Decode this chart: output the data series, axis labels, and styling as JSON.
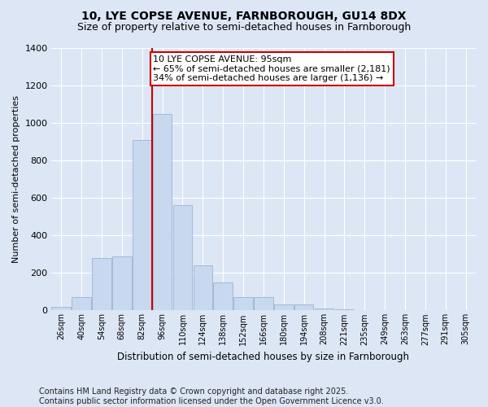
{
  "title": "10, LYE COPSE AVENUE, FARNBOROUGH, GU14 8DX",
  "subtitle": "Size of property relative to semi-detached houses in Farnborough",
  "xlabel": "Distribution of semi-detached houses by size in Farnborough",
  "ylabel": "Number of semi-detached properties",
  "categories": [
    "26sqm",
    "40sqm",
    "54sqm",
    "68sqm",
    "82sqm",
    "96sqm",
    "110sqm",
    "124sqm",
    "138sqm",
    "152sqm",
    "166sqm",
    "180sqm",
    "194sqm",
    "208sqm",
    "221sqm",
    "235sqm",
    "249sqm",
    "263sqm",
    "277sqm",
    "291sqm",
    "305sqm"
  ],
  "values": [
    20,
    70,
    280,
    290,
    910,
    1050,
    560,
    240,
    150,
    70,
    70,
    30,
    30,
    10,
    5,
    0,
    0,
    0,
    0,
    0,
    0
  ],
  "bar_color": "#c8d8ee",
  "bar_edge_color": "#9ab4d4",
  "vline_x_index": 5,
  "vline_color": "#cc0000",
  "annotation_text": "10 LYE COPSE AVENUE: 95sqm\n← 65% of semi-detached houses are smaller (2,181)\n34% of semi-detached houses are larger (1,136) →",
  "annotation_box_color": "#ffffff",
  "annotation_border_color": "#cc0000",
  "ylim": [
    0,
    1400
  ],
  "yticks": [
    0,
    200,
    400,
    600,
    800,
    1000,
    1200,
    1400
  ],
  "footer_text": "Contains HM Land Registry data © Crown copyright and database right 2025.\nContains public sector information licensed under the Open Government Licence v3.0.",
  "background_color": "#dde6f5",
  "plot_bg_color": "#dde6f5",
  "title_fontsize": 10,
  "subtitle_fontsize": 9,
  "footer_fontsize": 7,
  "annot_fontsize": 8
}
